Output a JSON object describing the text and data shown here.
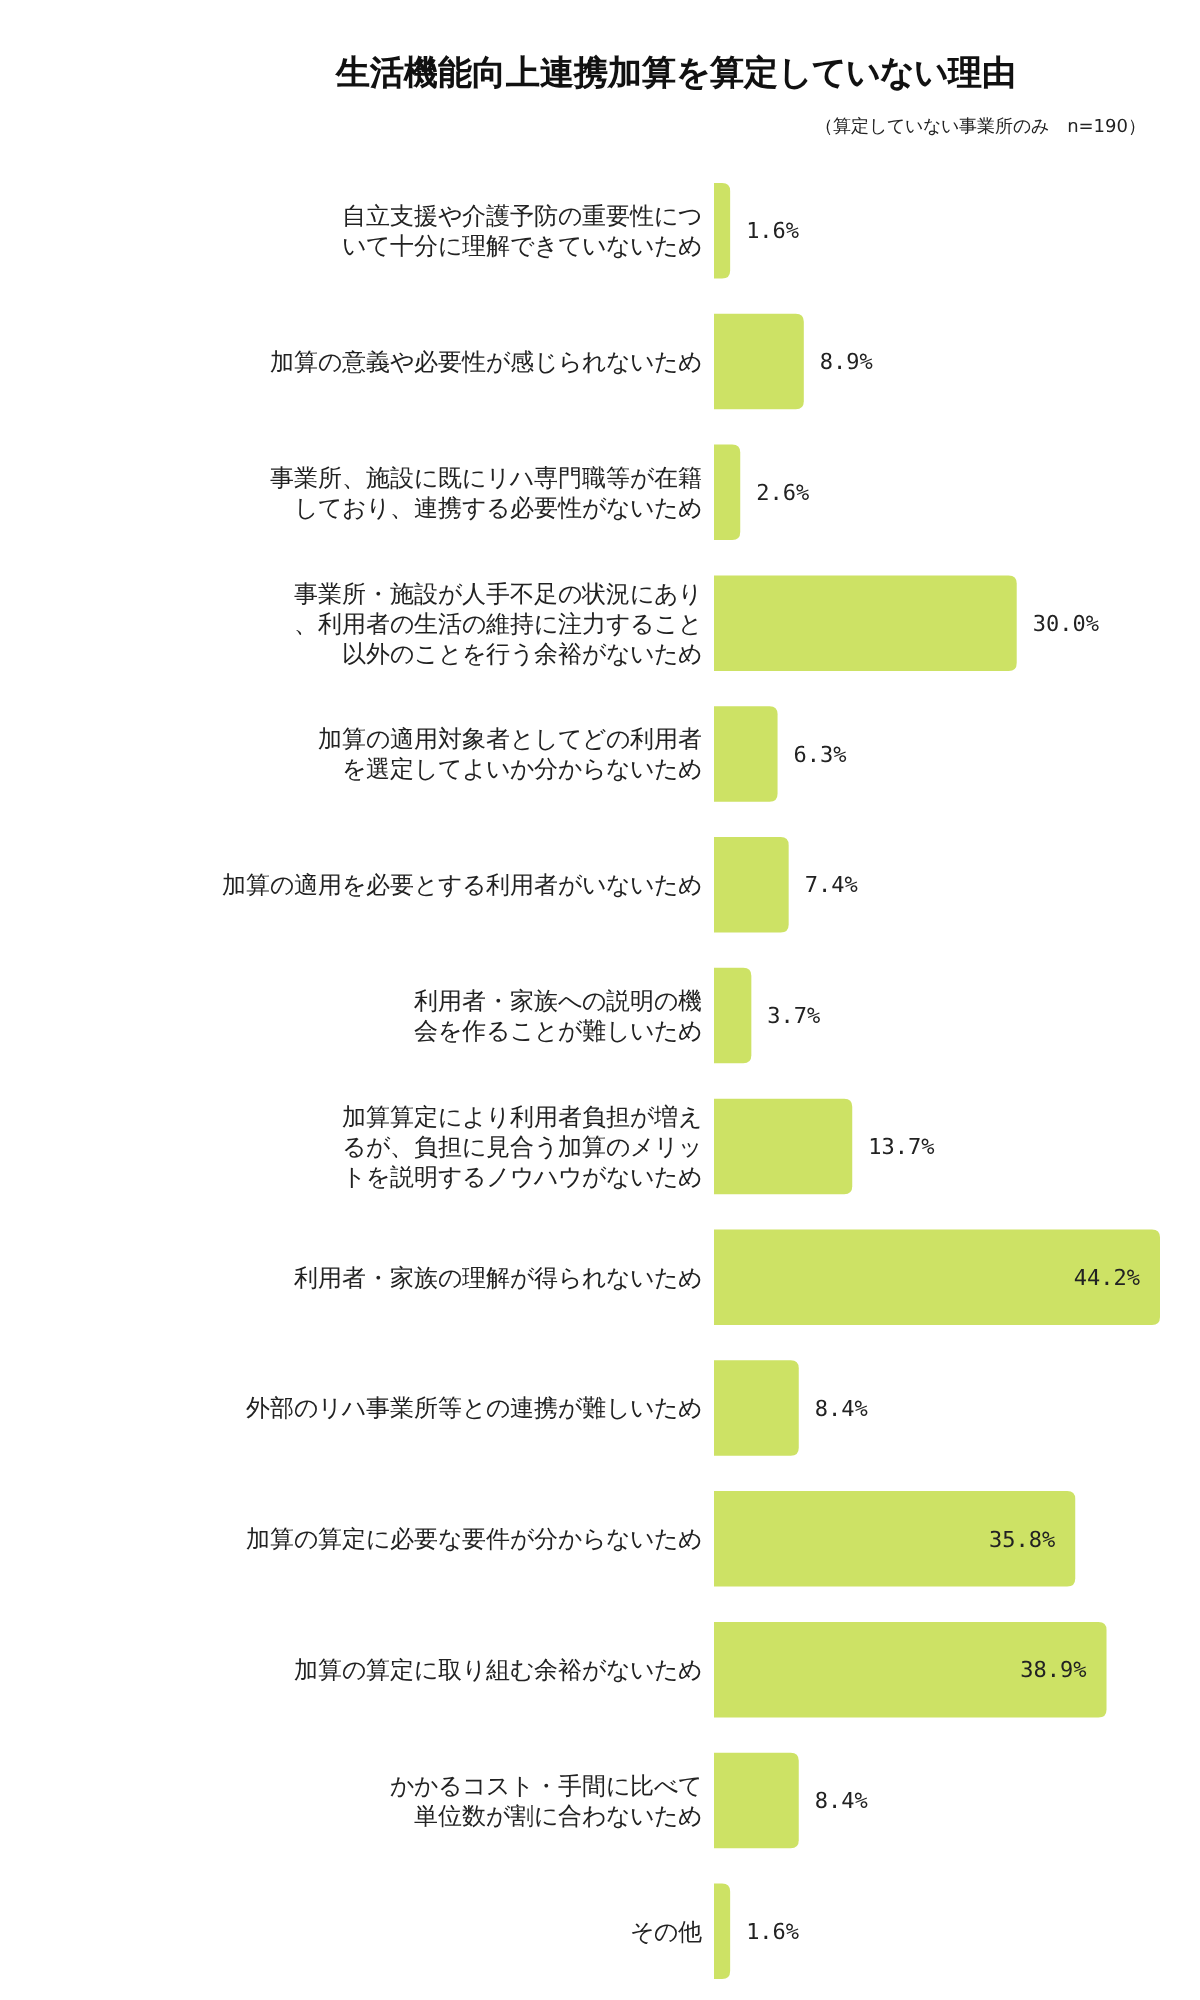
{
  "chart_data": {
    "type": "bar",
    "orientation": "horizontal",
    "title": "生活機能向上連携加算を算定していない理由",
    "subtitle": "（算定していない事業所のみ　n=190）",
    "categories": [
      "自立支援や介護予防の重要性について十分に理解できていないため",
      "加算の意義や必要性が感じられないため",
      "事業所、施設に既にリハ専門職等が在籍しており、連携する必要性がないため",
      "事業所・施設が人手不足の状況にあり、利用者の生活の維持に注力すること以外のことを行う余裕がないため",
      "加算の適用対象者としてどの利用者を選定してよいか分からないため",
      "加算の適用を必要とする利用者がいないため",
      "利用者・家族への説明の機会を作ることが難しいため",
      "加算算定により利用者負担が増えるが、負担に見合う加算のメリットを説明するノウハウがないため",
      "利用者・家族の理解が得られないため",
      "外部のリハ事業所等との連携が難しいため",
      "加算の算定に必要な要件が分からないため",
      "加算の算定に取り組む余裕がないため",
      "かかるコスト・手間に比べて単位数が割に合わないため",
      "その他"
    ],
    "values": [
      1.6,
      8.9,
      2.6,
      30.0,
      6.3,
      7.4,
      3.7,
      13.7,
      44.2,
      8.4,
      35.8,
      38.9,
      8.4,
      1.6
    ],
    "value_labels": [
      "1.6%",
      "8.9%",
      "2.6%",
      "30.0%",
      "6.3%",
      "7.4%",
      "3.7%",
      "13.7%",
      "44.2%",
      "8.4%",
      "35.8%",
      "38.9%",
      "8.4%",
      "1.6%"
    ],
    "color": "#cde265"
  }
}
